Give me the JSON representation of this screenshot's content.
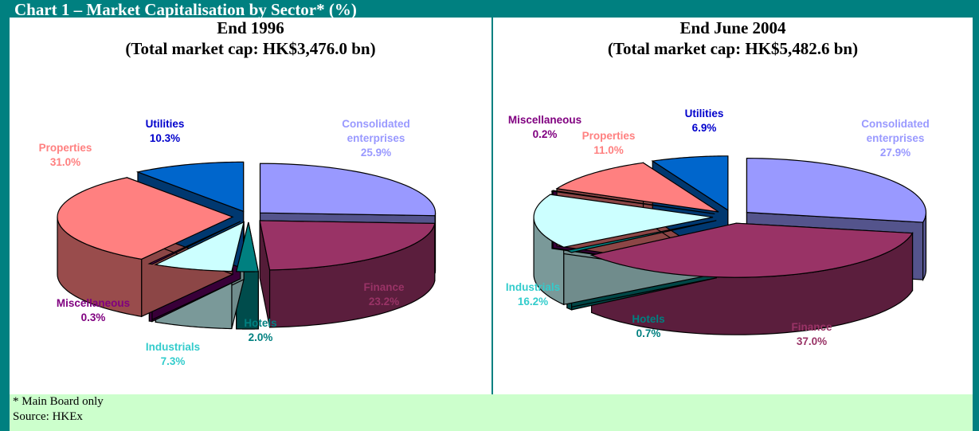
{
  "header": {
    "title": "Chart 1 – Market Capitalisation by Sector* (%)"
  },
  "chart_data": [
    {
      "type": "pie",
      "title": "End 1996",
      "subtitle": "(Total market cap: HK$3,476.0 bn)",
      "categories": [
        "Consolidated enterprises",
        "Finance",
        "Hotels",
        "Industrials",
        "Miscellaneous",
        "Properties",
        "Utilities"
      ],
      "values": [
        25.9,
        23.2,
        2.0,
        7.3,
        0.3,
        31.0,
        10.3
      ],
      "value_labels": [
        "25.9%",
        "23.2%",
        "2.0%",
        "7.3%",
        "0.3%",
        "31.0%",
        "10.3%"
      ],
      "colors": [
        "#9999ff",
        "#993366",
        "#008080",
        "#ccffff",
        "#660066",
        "#ff8080",
        "#0066cc"
      ],
      "label_colors": [
        "#9999ff",
        "#993366",
        "#008080",
        "#33cccc",
        "#800080",
        "#ff8080",
        "#0000cc"
      ]
    },
    {
      "type": "pie",
      "title": "End June 2004",
      "subtitle": "(Total market cap: HK$5,482.6 bn)",
      "categories": [
        "Consolidated enterprises",
        "Finance",
        "Hotels",
        "Industrials",
        "Miscellaneous",
        "Properties",
        "Utilities"
      ],
      "values": [
        27.9,
        37.0,
        0.7,
        16.2,
        0.2,
        11.0,
        6.9
      ],
      "value_labels": [
        "27.9%",
        "37.0%",
        "0.7%",
        "16.2%",
        "0.2%",
        "11.0%",
        "6.9%"
      ],
      "colors": [
        "#9999ff",
        "#993366",
        "#008080",
        "#ccffff",
        "#660066",
        "#ff8080",
        "#0066cc"
      ],
      "label_colors": [
        "#9999ff",
        "#993366",
        "#008080",
        "#33cccc",
        "#800080",
        "#ff8080",
        "#0000cc"
      ]
    }
  ],
  "footnotes": [
    "* Main Board only",
    "Source: HKEx"
  ]
}
